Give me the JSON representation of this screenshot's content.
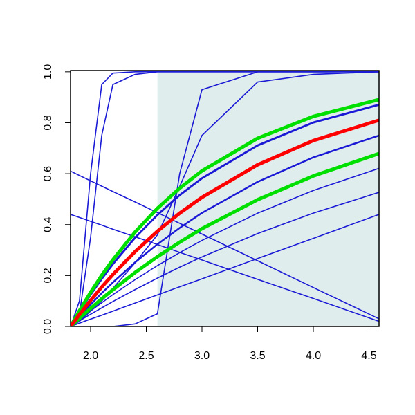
{
  "chart_data": {
    "type": "line",
    "x": [
      1.82,
      1.9,
      2.0,
      2.1,
      2.2,
      2.4,
      2.6,
      2.8,
      3.0,
      3.5,
      4.0,
      4.59
    ],
    "xlim": [
      1.82,
      4.59
    ],
    "ylim": [
      0,
      1.005
    ],
    "xticks": [
      {
        "value": 2,
        "label": "2.0"
      },
      2.5,
      {
        "value": 3,
        "label": "3.0"
      },
      3.5,
      {
        "value": 4,
        "label": "4.0"
      },
      4.5
    ],
    "yticks": [
      {
        "value": 0,
        "label": "0.0"
      },
      0.2,
      0.4,
      0.6,
      0.8,
      {
        "value": 1,
        "label": "1.0"
      }
    ],
    "shaded_region": {
      "from": 2.6,
      "color": "#e0eded"
    },
    "series": [
      {
        "color": "#1a1ad6",
        "width": 1.6,
        "values": [
          0,
          0.1,
          0.6,
          0.95,
          0.995,
          1,
          1,
          1,
          1,
          1,
          1,
          1
        ]
      },
      {
        "color": "#1a1ad6",
        "width": 1.6,
        "values": [
          0,
          0.05,
          0.35,
          0.75,
          0.95,
          0.99,
          1,
          1,
          1,
          1,
          1,
          1
        ]
      },
      {
        "color": "#1a1ad6",
        "width": 1.6,
        "values": [
          0,
          0,
          0,
          0,
          0,
          0.01,
          0.05,
          0.6,
          0.93,
          1,
          1,
          1
        ]
      },
      {
        "color": "#1a1ad6",
        "width": 1.6,
        "values": [
          0,
          0.02,
          0.06,
          0.1,
          0.15,
          0.25,
          0.36,
          0.55,
          0.75,
          0.96,
          0.99,
          1
        ]
      },
      {
        "color": "#1a1ad6",
        "width": 1.6,
        "values": [
          0.61,
          0.593,
          0.572,
          0.551,
          0.53,
          0.489,
          0.447,
          0.405,
          0.363,
          0.258,
          0.153,
          0.03
        ]
      },
      {
        "color": "#1a1ad6",
        "width": 1.6,
        "values": [
          0.44,
          0.428,
          0.413,
          0.398,
          0.382,
          0.352,
          0.322,
          0.291,
          0.261,
          0.185,
          0.11,
          0.02
        ]
      },
      {
        "color": "#1a1ad6",
        "width": 1.6,
        "values": [
          0,
          0.013,
          0.029,
          0.044,
          0.06,
          0.092,
          0.124,
          0.156,
          0.187,
          0.267,
          0.346,
          0.44
        ]
      },
      {
        "color": "#1a1ad6",
        "width": 1.6,
        "values": [
          0,
          0.022,
          0.048,
          0.073,
          0.098,
          0.145,
          0.19,
          0.233,
          0.273,
          0.365,
          0.445,
          0.527
        ]
      },
      {
        "color": "#1a1ad6",
        "width": 1.6,
        "values": [
          0,
          0.028,
          0.061,
          0.093,
          0.125,
          0.184,
          0.239,
          0.29,
          0.338,
          0.445,
          0.534,
          0.621
        ]
      },
      {
        "color": "#1a1ad6",
        "width": 2.5,
        "values": [
          0,
          0.039,
          0.086,
          0.131,
          0.173,
          0.252,
          0.323,
          0.387,
          0.446,
          0.568,
          0.664,
          0.75
        ]
      },
      {
        "color": "#1a1ad6",
        "width": 3,
        "values": [
          0,
          0.057,
          0.125,
          0.187,
          0.245,
          0.349,
          0.438,
          0.516,
          0.582,
          0.711,
          0.801,
          0.871
        ]
      },
      {
        "color": "#00e000",
        "width": 5,
        "values": [
          0,
          0.062,
          0.134,
          0.201,
          0.262,
          0.371,
          0.464,
          0.543,
          0.611,
          0.739,
          0.825,
          0.891
        ]
      },
      {
        "color": "#00e000",
        "width": 5,
        "values": [
          0,
          0.032,
          0.071,
          0.109,
          0.144,
          0.212,
          0.274,
          0.331,
          0.384,
          0.498,
          0.591,
          0.679
        ]
      },
      {
        "color": "#ff0000",
        "width": 5,
        "values": [
          0,
          0.047,
          0.102,
          0.155,
          0.204,
          0.294,
          0.374,
          0.445,
          0.507,
          0.635,
          0.73,
          0.81
        ]
      }
    ]
  }
}
